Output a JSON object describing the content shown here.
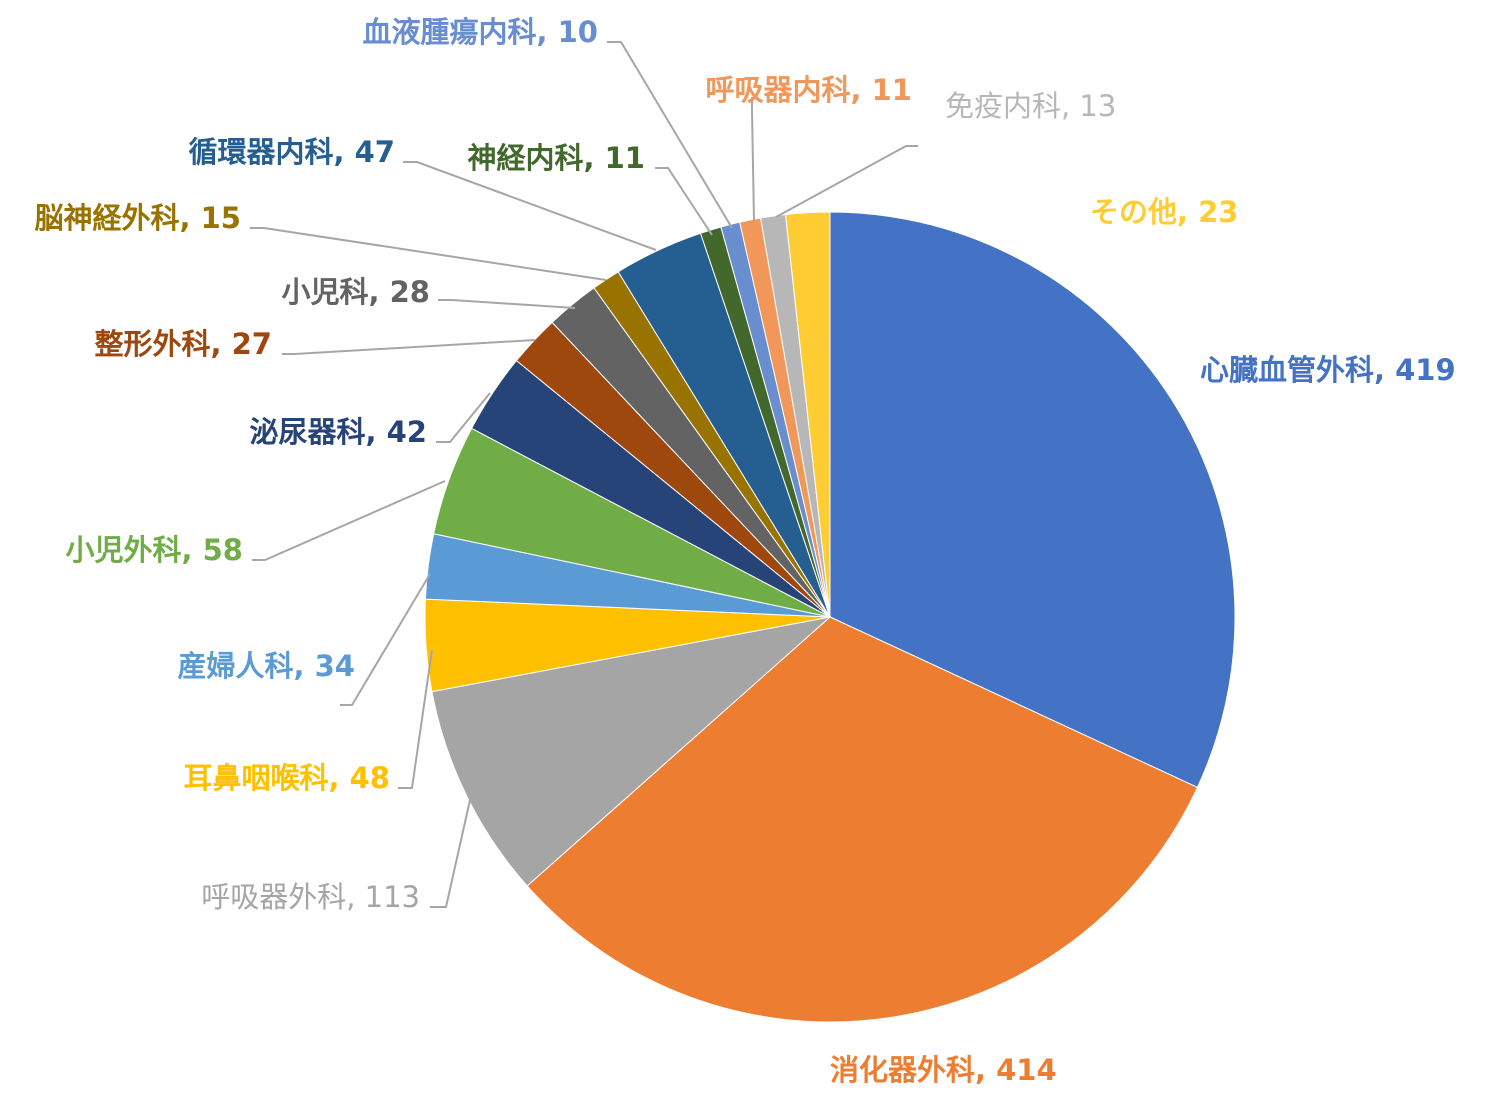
{
  "chart_data": {
    "type": "pie",
    "title": "",
    "start_angle_deg": 0,
    "direction": "clockwise",
    "slices": [
      {
        "label": "心臓血管外科",
        "value": 419,
        "color": "#4472C4",
        "text_color": "#4472C4",
        "bold": true
      },
      {
        "label": "消化器外科",
        "value": 414,
        "color": "#ED7D31",
        "text_color": "#ED7D31",
        "bold": true
      },
      {
        "label": "呼吸器外科",
        "value": 113,
        "color": "#A5A5A5",
        "text_color": "#A5A5A5",
        "bold": false
      },
      {
        "label": "耳鼻咽喉科",
        "value": 48,
        "color": "#FFC000",
        "text_color": "#FFC000",
        "bold": true
      },
      {
        "label": "産婦人科",
        "value": 34,
        "color": "#5B9BD5",
        "text_color": "#5B9BD5",
        "bold": true
      },
      {
        "label": "小児外科",
        "value": 58,
        "color": "#70AD47",
        "text_color": "#70AD47",
        "bold": true
      },
      {
        "label": "泌尿器科",
        "value": 42,
        "color": "#264478",
        "text_color": "#264478",
        "bold": true
      },
      {
        "label": "整形外科",
        "value": 27,
        "color": "#9E480E",
        "text_color": "#9E480E",
        "bold": true
      },
      {
        "label": "小児科",
        "value": 28,
        "color": "#636363",
        "text_color": "#636363",
        "bold": true
      },
      {
        "label": "脳神経外科",
        "value": 15,
        "color": "#997300",
        "text_color": "#997300",
        "bold": true
      },
      {
        "label": "循環器内科",
        "value": 47,
        "color": "#255E91",
        "text_color": "#255E91",
        "bold": true
      },
      {
        "label": "神経内科",
        "value": 11,
        "color": "#43682B",
        "text_color": "#43682B",
        "bold": true
      },
      {
        "label": "血液腫瘍内科",
        "value": 10,
        "color": "#698ED0",
        "text_color": "#698ED0",
        "bold": true
      },
      {
        "label": "呼吸器内科",
        "value": 11,
        "color": "#F1975A",
        "text_color": "#F1975A",
        "bold": true
      },
      {
        "label": "免疫内科",
        "value": 13,
        "color": "#B7B7B7",
        "text_color": "#B7B7B7",
        "bold": false
      },
      {
        "label": "その他",
        "value": 23,
        "color": "#FFCD33",
        "text_color": "#FFCD33",
        "bold": true
      }
    ]
  }
}
